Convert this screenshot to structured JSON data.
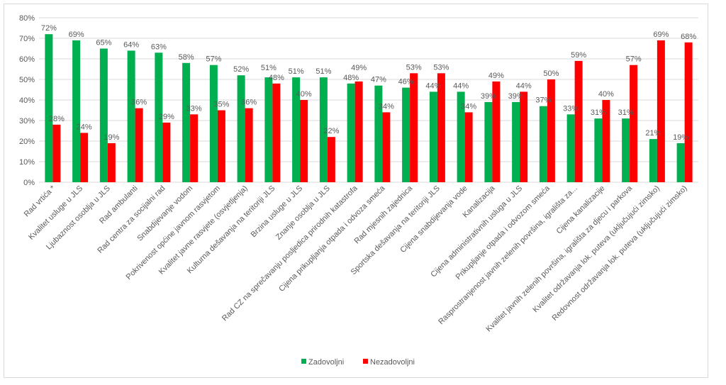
{
  "chart_data": {
    "type": "bar",
    "title": "",
    "xlabel": "",
    "ylabel": "",
    "ylim": [
      0,
      80
    ],
    "yticks": [
      "0%",
      "10%",
      "20%",
      "30%",
      "40%",
      "50%",
      "60%",
      "70%",
      "80%"
    ],
    "grid": true,
    "legend_position": "bottom",
    "categories": [
      "Rad vrtića *",
      "Kvalitet usluge u JLS",
      "Ljubaznost osoblja u JLS",
      "Rad ambulanti",
      "Rad centra za socijalni rad",
      "Snabdijevanje vodom",
      "Pokrivenost općine javnom rasvjetom",
      "Kvalitet javne rasvjete (osvjetljenja)",
      "Kulturna dešavanja na teritoriji JLS",
      "Brzina usluge u JLS",
      "Znanje osoblja u JLS",
      "Rad CZ na sprečavanju posljedica prirodnih katastrofa",
      "Cijena prikupljanja otpada i odvoza smeća",
      "Rad mjesnih zajednica",
      "Sportska dešavanja na teritoriji JLS",
      "Cijena snabdijevanja vode",
      "Kanalizacija",
      "Cijena administrativnih usluga u JLS",
      "Prikupljanje otpada i odvozom smeća",
      "Rasprostranjenost javnih zelenih površina, igrališta za...",
      "Cijena kanalizacije",
      "Kvalitet javnih zelenih površina, igrališta za djecu i parkova",
      "Kvalitet održavanja lok. puteva (uključujući zimsko)",
      "Redovnost održavanja lok. puteva (uključujući zimsko)"
    ],
    "series": [
      {
        "name": "Zadovoljni",
        "color": "#00B050",
        "values": [
          72,
          69,
          65,
          64,
          63,
          58,
          57,
          52,
          51,
          51,
          51,
          48,
          47,
          46,
          44,
          44,
          39,
          39,
          37,
          33,
          31,
          31,
          21,
          19
        ]
      },
      {
        "name": "Nezadovoljni",
        "color": "#FF0000",
        "values": [
          28,
          24,
          19,
          36,
          29,
          33,
          35,
          36,
          48,
          40,
          22,
          49,
          34,
          53,
          53,
          34,
          49,
          44,
          50,
          59,
          40,
          57,
          69,
          68
        ]
      }
    ]
  }
}
